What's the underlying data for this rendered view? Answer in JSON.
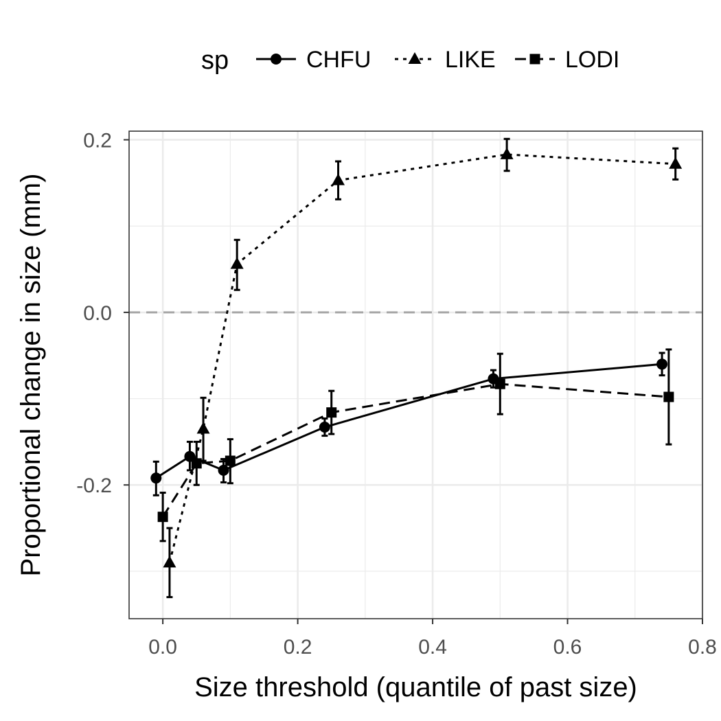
{
  "chart_data": {
    "type": "line",
    "title": "",
    "xlabel": "Size threshold (quantile of past size)",
    "ylabel": "Proportional change in size (mm)",
    "xlim": [
      -0.05,
      0.8
    ],
    "ylim": [
      -0.355,
      0.21
    ],
    "x_ticks": [
      0.0,
      0.2,
      0.4,
      0.6,
      0.8
    ],
    "x_tick_labels": [
      "0.0",
      "0.2",
      "0.4",
      "0.6",
      "0.8"
    ],
    "y_ticks": [
      -0.2,
      0.0,
      0.2
    ],
    "y_tick_labels": [
      "-0.2",
      "0.0",
      "0.2"
    ],
    "grid": true,
    "reference_line": {
      "y": 0.0,
      "style": "dashed",
      "color": "#a6a6a6"
    },
    "legend": {
      "title": "sp",
      "position": "top"
    },
    "series": [
      {
        "name": "CHFU",
        "marker": "circle",
        "linestyle": "solid",
        "x": [
          -0.01,
          0.04,
          0.09,
          0.24,
          0.49,
          0.74
        ],
        "y": [
          -0.192,
          -0.167,
          -0.183,
          -0.133,
          -0.077,
          -0.06
        ],
        "y_low": [
          -0.212,
          -0.183,
          -0.197,
          -0.143,
          -0.087,
          -0.073
        ],
        "y_high": [
          -0.173,
          -0.15,
          -0.17,
          -0.123,
          -0.067,
          -0.047
        ]
      },
      {
        "name": "LIKE",
        "marker": "triangle",
        "linestyle": "dotted",
        "x": [
          0.01,
          0.06,
          0.11,
          0.26,
          0.51,
          0.76
        ],
        "y": [
          -0.29,
          -0.135,
          0.056,
          0.153,
          0.183,
          0.172
        ],
        "y_low": [
          -0.33,
          -0.172,
          0.026,
          0.131,
          0.164,
          0.154
        ],
        "y_high": [
          -0.25,
          -0.099,
          0.084,
          0.175,
          0.201,
          0.19
        ]
      },
      {
        "name": "LODI",
        "marker": "square",
        "linestyle": "dashed",
        "x": [
          0.0,
          0.05,
          0.1,
          0.25,
          0.5,
          0.75
        ],
        "y": [
          -0.237,
          -0.175,
          -0.172,
          -0.116,
          -0.083,
          -0.098
        ],
        "y_low": [
          -0.265,
          -0.2,
          -0.198,
          -0.141,
          -0.118,
          -0.153
        ],
        "y_high": [
          -0.209,
          -0.15,
          -0.147,
          -0.091,
          -0.048,
          -0.043
        ]
      }
    ]
  }
}
